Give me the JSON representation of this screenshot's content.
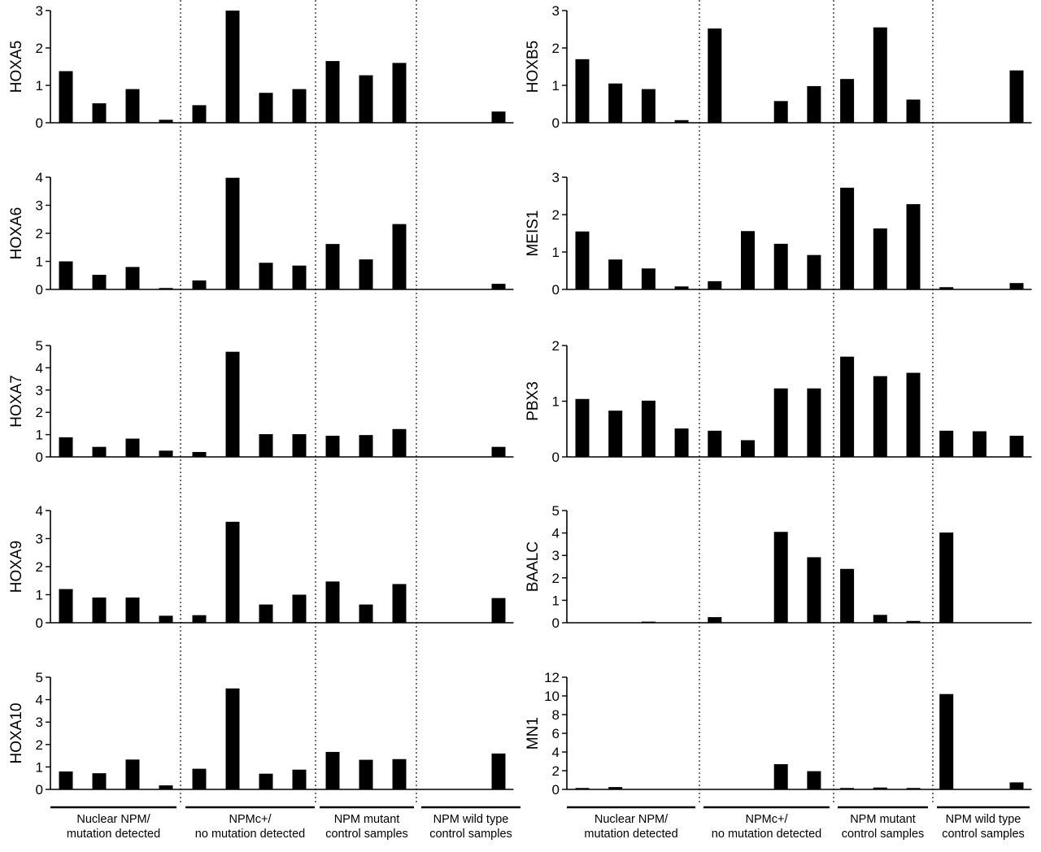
{
  "groups": [
    {
      "line1": "Nuclear NPM/",
      "line2": "mutation detected"
    },
    {
      "line1": "NPMc+/",
      "line2": "no mutation detected"
    },
    {
      "line1": "NPM mutant",
      "line2": "control samples"
    },
    {
      "line1": "NPM wild type",
      "line2": "control samples"
    }
  ],
  "chart_data": [
    {
      "type": "bar",
      "ylabel": "HOXA5",
      "ylim": [
        0,
        3
      ],
      "yticks": [
        "0",
        "1",
        "2",
        "3"
      ],
      "values": [
        1.38,
        0.52,
        0.9,
        0.08,
        0.47,
        3.0,
        0.8,
        0.9,
        1.65,
        1.27,
        1.6,
        0,
        0,
        0,
        0.3
      ]
    },
    {
      "type": "bar",
      "ylabel": "HOXB5",
      "ylim": [
        0,
        3
      ],
      "yticks": [
        "0",
        "1",
        "2",
        "3"
      ],
      "values": [
        1.7,
        1.05,
        0.9,
        0.07,
        2.52,
        0,
        0.58,
        0.98,
        1.17,
        2.55,
        0.62,
        0,
        0,
        1.4
      ]
    },
    {
      "type": "bar",
      "ylabel": "HOXA6",
      "ylim": [
        0,
        4
      ],
      "yticks": [
        "0",
        "1",
        "2",
        "3",
        "4"
      ],
      "values": [
        1.0,
        0.52,
        0.8,
        0.05,
        0.32,
        3.98,
        0.95,
        0.85,
        1.62,
        1.07,
        2.33,
        0,
        0,
        0,
        0.2
      ]
    },
    {
      "type": "bar",
      "ylabel": "MEIS1",
      "ylim": [
        0,
        3
      ],
      "yticks": [
        "0",
        "1",
        "2",
        "3"
      ],
      "values": [
        1.55,
        0.8,
        0.56,
        0.08,
        0.22,
        1.56,
        1.22,
        0.92,
        2.72,
        1.63,
        2.28,
        0.06,
        0,
        0.17
      ]
    },
    {
      "type": "bar",
      "ylabel": "HOXA7",
      "ylim": [
        0,
        5
      ],
      "yticks": [
        "0",
        "1",
        "2",
        "3",
        "4",
        "5"
      ],
      "values": [
        0.88,
        0.45,
        0.82,
        0.28,
        0.22,
        4.72,
        1.02,
        1.02,
        0.95,
        0.98,
        1.25,
        0,
        0,
        0,
        0.45
      ]
    },
    {
      "type": "bar",
      "ylabel": "PBX3",
      "ylim": [
        0,
        2
      ],
      "yticks": [
        "0",
        "1",
        "2"
      ],
      "values": [
        1.04,
        0.83,
        1.01,
        0.51,
        0.47,
        0.3,
        1.23,
        1.23,
        1.8,
        1.45,
        1.51,
        0.47,
        0.46,
        0.38
      ]
    },
    {
      "type": "bar",
      "ylabel": "HOXA9",
      "ylim": [
        0,
        4
      ],
      "yticks": [
        "0",
        "1",
        "2",
        "3",
        "4"
      ],
      "values": [
        1.2,
        0.9,
        0.9,
        0.25,
        0.27,
        3.6,
        0.65,
        1.0,
        1.47,
        0.65,
        1.38,
        0,
        0,
        0,
        0.88
      ]
    },
    {
      "type": "bar",
      "ylabel": "BAALC",
      "ylim": [
        0,
        5
      ],
      "yticks": [
        "0",
        "1",
        "2",
        "3",
        "4",
        "5"
      ],
      "values": [
        0,
        0,
        0.05,
        0,
        0.25,
        0,
        4.05,
        2.92,
        2.4,
        0.35,
        0.08,
        4.02,
        0,
        0
      ]
    },
    {
      "type": "bar",
      "ylabel": "HOXA10",
      "ylim": [
        0,
        5
      ],
      "yticks": [
        "0",
        "1",
        "2",
        "3",
        "4",
        "5"
      ],
      "values": [
        0.8,
        0.72,
        1.33,
        0.18,
        0.92,
        4.5,
        0.7,
        0.88,
        1.67,
        1.32,
        1.35,
        0,
        0,
        0,
        1.6
      ]
    },
    {
      "type": "bar",
      "ylabel": "MN1",
      "ylim": [
        0,
        12
      ],
      "yticks": [
        "0",
        "2",
        "4",
        "6",
        "8",
        "10",
        "12"
      ],
      "values": [
        0.15,
        0.25,
        0,
        0,
        0,
        0,
        2.7,
        1.95,
        0.15,
        0.2,
        0.15,
        10.2,
        0,
        0.75
      ]
    }
  ]
}
